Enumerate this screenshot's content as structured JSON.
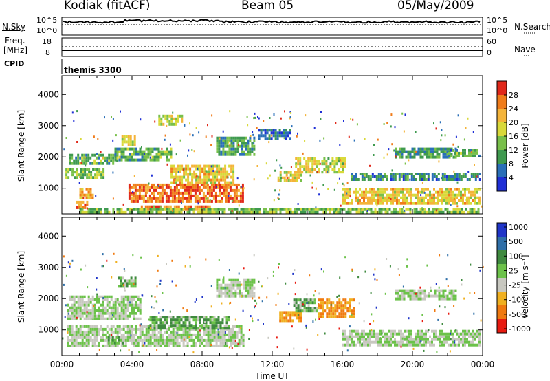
{
  "header": {
    "station": "Kodiak (fitACF)",
    "beam": "Beam 05",
    "date": "05/May/2009"
  },
  "nsky_panel": {
    "label_left": "N.Sky",
    "label_right": "N.Search",
    "left_ticks": [
      "10^5",
      "10^0"
    ],
    "right_ticks": [
      "10^5",
      "10^0"
    ]
  },
  "freq_panel": {
    "label_left_line1": "Freq.",
    "label_left_line2": "[MHz]",
    "label_right": "Nave",
    "left_ticks": [
      "18",
      "8"
    ],
    "right_ticks": [
      "60",
      "0"
    ]
  },
  "cpid": {
    "label": "CPID",
    "value": "themis 3300"
  },
  "colors": {
    "power": [
      "#1f2fd6",
      "#2a6fb8",
      "#3f9a4f",
      "#79c04a",
      "#d9d93a",
      "#f4b43a",
      "#f07c1a",
      "#e0281a"
    ],
    "velocity": [
      "#1f35c8",
      "#2f6fa8",
      "#3f8a3f",
      "#6cc24a",
      "#c8c8c0",
      "#f0b020",
      "#f07a10",
      "#e81a10"
    ]
  },
  "chart_data": [
    {
      "type": "heatmap",
      "name": "power",
      "xlabel": "",
      "ylabel": "Slant Range [km]",
      "xlim": [
        0,
        24
      ],
      "ylim": [
        180,
        4600
      ],
      "yticks": [
        1000,
        2000,
        3000,
        4000
      ],
      "colorbar": {
        "label": "Power [dB]",
        "range": [
          0,
          32
        ],
        "ticks": [
          "4",
          "8",
          "12",
          "16",
          "20",
          "24",
          "28"
        ]
      },
      "regions": [
        {
          "t0": 0.2,
          "t1": 2.4,
          "r0": 1300,
          "r1": 1650,
          "value": 14
        },
        {
          "t0": 0.4,
          "t1": 3.2,
          "r0": 1750,
          "r1": 2100,
          "value": 12
        },
        {
          "t0": 1.0,
          "t1": 1.8,
          "r0": 700,
          "r1": 1000,
          "value": 22
        },
        {
          "t0": 0.8,
          "t1": 1.4,
          "r0": 350,
          "r1": 600,
          "value": 26
        },
        {
          "t0": 3.0,
          "t1": 6.2,
          "r0": 1900,
          "r1": 2300,
          "value": 12
        },
        {
          "t0": 3.4,
          "t1": 4.2,
          "r0": 2400,
          "r1": 2700,
          "value": 18
        },
        {
          "t0": 3.8,
          "t1": 10.3,
          "r0": 550,
          "r1": 1150,
          "value": 27
        },
        {
          "t0": 4.5,
          "t1": 8.5,
          "r0": 300,
          "r1": 450,
          "value": 26
        },
        {
          "t0": 6.2,
          "t1": 9.8,
          "r0": 1150,
          "r1": 1750,
          "value": 20
        },
        {
          "t0": 5.5,
          "t1": 6.8,
          "r0": 3050,
          "r1": 3350,
          "value": 18
        },
        {
          "t0": 8.8,
          "t1": 11.0,
          "r0": 2100,
          "r1": 2650,
          "value": 10
        },
        {
          "t0": 11.2,
          "t1": 13.0,
          "r0": 2600,
          "r1": 2900,
          "value": 6
        },
        {
          "t0": 12.3,
          "t1": 13.6,
          "r0": 1250,
          "r1": 1550,
          "value": 18
        },
        {
          "t0": 13.3,
          "t1": 14.6,
          "r0": 1500,
          "r1": 2000,
          "value": 18
        },
        {
          "t0": 14.8,
          "t1": 16.2,
          "r0": 1500,
          "r1": 2000,
          "value": 16
        },
        {
          "t0": 16.0,
          "t1": 23.8,
          "r0": 550,
          "r1": 1000,
          "value": 20
        },
        {
          "t0": 16.5,
          "t1": 23.8,
          "r0": 1300,
          "r1": 1500,
          "value": 8
        },
        {
          "t0": 19.0,
          "t1": 22.5,
          "r0": 1950,
          "r1": 2300,
          "value": 10
        },
        {
          "t0": 22.0,
          "t1": 23.8,
          "r0": 2050,
          "r1": 2250,
          "value": 12
        },
        {
          "t0": 1.0,
          "t1": 23.8,
          "r0": 200,
          "r1": 360,
          "value": 14
        }
      ]
    },
    {
      "type": "heatmap",
      "name": "velocity",
      "xlabel": "Time UT",
      "ylabel": "Slant Range [km]",
      "xlim": [
        0,
        24
      ],
      "ylim": [
        180,
        4600
      ],
      "yticks": [
        1000,
        2000,
        3000,
        4000
      ],
      "xticks": [
        "00:00",
        "04:00",
        "08:00",
        "12:00",
        "16:00",
        "20:00",
        "00:00"
      ],
      "colorbar": {
        "label": "Velocity [m s⁻¹]",
        "ticks": [
          "1000",
          "500",
          "100",
          "25",
          "-25",
          "-100",
          "-500",
          "-1000"
        ]
      },
      "regions": [
        {
          "t0": 0.3,
          "t1": 10.3,
          "r0": 450,
          "r1": 1150,
          "value": 0
        },
        {
          "t0": 0.3,
          "t1": 4.5,
          "r0": 1350,
          "r1": 2100,
          "value": 0
        },
        {
          "t0": 2.5,
          "t1": 3.5,
          "r0": 600,
          "r1": 800,
          "value": 60
        },
        {
          "t0": 3.2,
          "t1": 4.2,
          "r0": 2400,
          "r1": 2700,
          "value": 60
        },
        {
          "t0": 5.0,
          "t1": 9.5,
          "r0": 1050,
          "r1": 1450,
          "value": 60
        },
        {
          "t0": 8.8,
          "t1": 11.0,
          "r0": 2100,
          "r1": 2650,
          "value": 0
        },
        {
          "t0": 12.4,
          "t1": 13.6,
          "r0": 1250,
          "r1": 1600,
          "value": -300
        },
        {
          "t0": 13.2,
          "t1": 14.6,
          "r0": 1600,
          "r1": 2000,
          "value": 60
        },
        {
          "t0": 14.6,
          "t1": 16.6,
          "r0": 1400,
          "r1": 2000,
          "value": -300
        },
        {
          "t0": 16.0,
          "t1": 23.8,
          "r0": 550,
          "r1": 1000,
          "value": 0
        },
        {
          "t0": 19.0,
          "t1": 22.5,
          "r0": 1950,
          "r1": 2300,
          "value": 0
        }
      ]
    }
  ]
}
